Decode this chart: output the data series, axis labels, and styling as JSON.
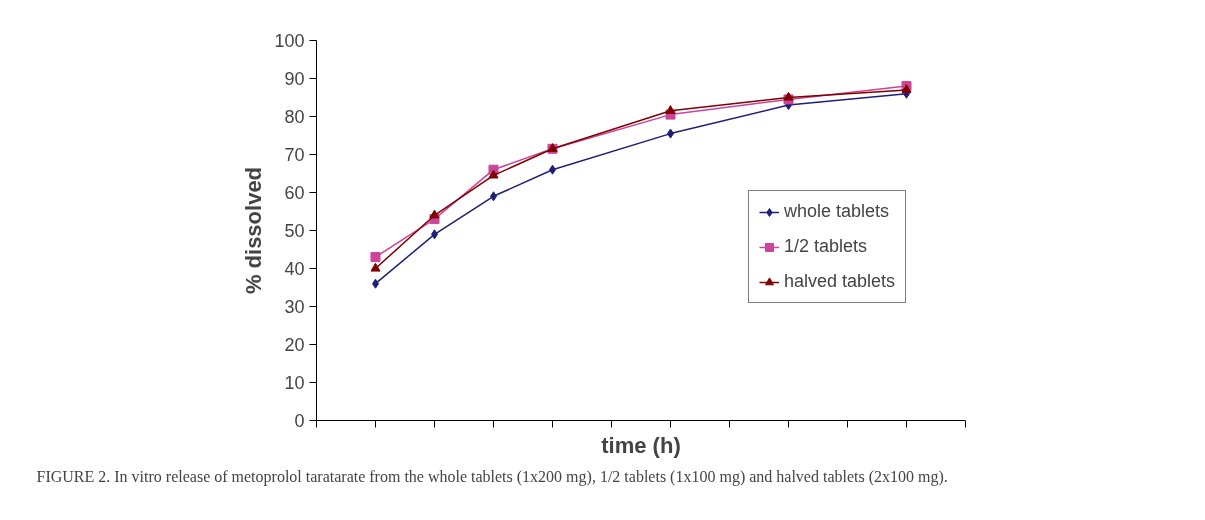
{
  "chart_data": {
    "type": "line",
    "xlabel": "time (h)",
    "ylabel": "% dissolved",
    "categories": [
      null,
      null,
      null,
      null,
      null,
      null,
      null,
      null,
      null,
      null
    ],
    "series": [
      {
        "name": "whole tablets",
        "color": "#1f1f7a",
        "marker": "diamond",
        "values": [
          36,
          49,
          59,
          66,
          null,
          75.5,
          null,
          83,
          null,
          86
        ]
      },
      {
        "name": "1/2 tablets",
        "color": "#cc4499",
        "marker": "square",
        "values": [
          43,
          53,
          66,
          71.5,
          null,
          80.5,
          null,
          84.5,
          null,
          88
        ]
      },
      {
        "name": "halved tablets",
        "color": "#800000",
        "marker": "triangle",
        "values": [
          40,
          54,
          64.5,
          71.5,
          null,
          81.5,
          null,
          85,
          null,
          87
        ]
      }
    ],
    "ylim": [
      0,
      100
    ],
    "yticks": [
      0,
      10,
      20,
      30,
      40,
      50,
      60,
      70,
      80,
      90,
      100
    ],
    "grid": false,
    "legend": "right",
    "tick_labels": "y",
    "annotations": [
      "FIGURE 2. In vitro release of metoprolol taratarate from the whole tablets (1x200 mg), 1/2 tablets (1x100 mg) and halved tablets (2x100 mg)."
    ]
  }
}
